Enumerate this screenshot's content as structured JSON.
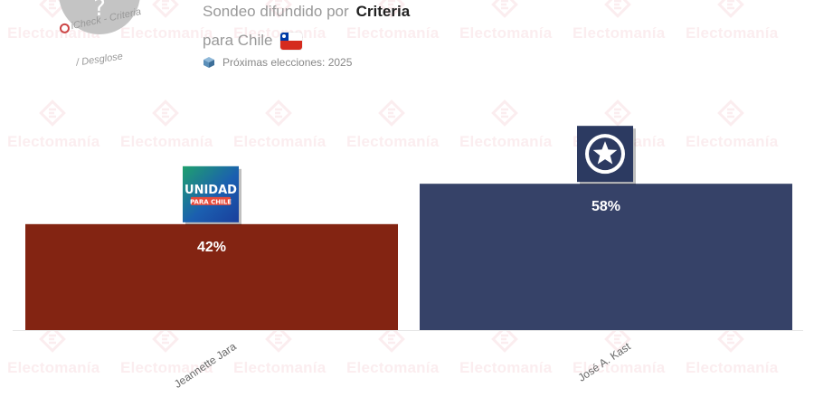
{
  "header": {
    "title_prefix": "Sondeo difundido por",
    "pollster": "Criteria",
    "subtitle": "para Chile",
    "next_elections": "Próximas elecciones: 2025",
    "poll_circle_symbol": "?",
    "check_text": "iCheck - Criteria",
    "breakdown_text": "/ Desglose",
    "flag_icon": "chile-flag-icon",
    "ballot_icon": "ballot-box-icon"
  },
  "watermark": {
    "text": "Electomanía",
    "color": "#d7374b"
  },
  "chart_data": {
    "type": "bar",
    "categories": [
      "Jeannette Jara",
      "José A. Kast"
    ],
    "values": [
      42,
      58
    ],
    "value_labels": [
      "42%",
      "58%"
    ],
    "colors": [
      "#832412",
      "#364268"
    ],
    "ylim": [
      0,
      100
    ],
    "grid": false,
    "legend": "none",
    "xlabel": "",
    "ylabel": "",
    "logos": [
      {
        "name": "unidad-por-chile-logo",
        "line1": "UNIDAD",
        "line2": "PARA CHILE"
      },
      {
        "name": "star-logo"
      }
    ]
  }
}
